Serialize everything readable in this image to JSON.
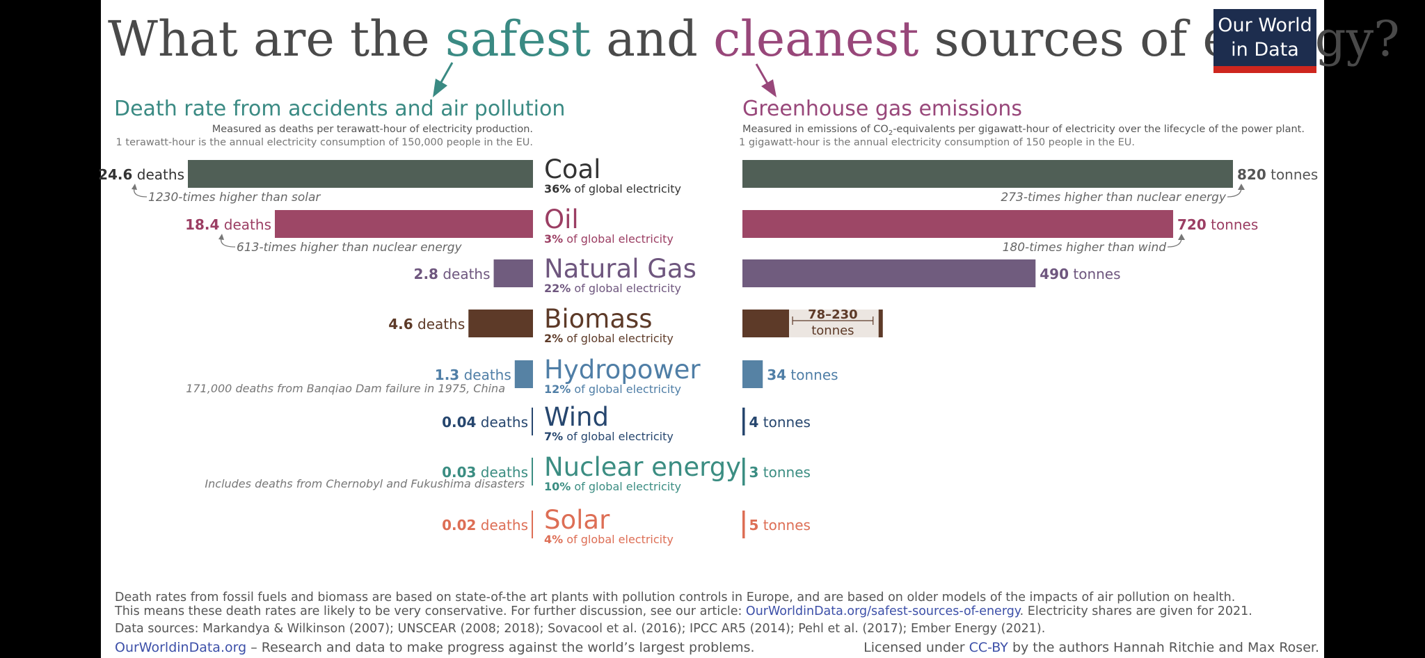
{
  "title": {
    "part1": "What are the ",
    "safest": "safest",
    "part2": " and ",
    "cleanest": "cleanest",
    "part3": " sources of energy?"
  },
  "logo": {
    "line1": "Our World",
    "line2": "in Data"
  },
  "left_panel": {
    "heading": "Death rate from accidents and air pollution",
    "sub1": "Measured as deaths per terawatt-hour of electricity production.",
    "sub2": "1 terawatt-hour is the annual electricity consumption of 150,000 people in the EU.",
    "unit": "deaths"
  },
  "right_panel": {
    "heading": "Greenhouse gas emissions",
    "sub1_a": "Measured in emissions of CO",
    "sub1_sub": "2",
    "sub1_b": "-equivalents per gigawatt-hour of electricity over the lifecycle of the power plant.",
    "sub2": "1 gigawatt-hour is the annual electricity consumption of 150 people in the EU.",
    "unit": "tonnes"
  },
  "share_suffix": "of global electricity",
  "colors": {
    "background": "#ffffff",
    "title_text": "#4a4a4a",
    "safest": "#3a8a83",
    "cleanest": "#98477a",
    "logo_bg": "#1d2d4e",
    "logo_bar": "#ce261e",
    "link": "#3c4fa8",
    "footer_text": "#555555"
  },
  "chart_data": [
    {
      "type": "bar",
      "orientation": "horizontal",
      "direction": "right-to-left",
      "title": "Death rate from accidents and air pollution",
      "unit": "deaths per TWh",
      "categories": [
        "Coal",
        "Oil",
        "Natural Gas",
        "Biomass",
        "Hydropower",
        "Wind",
        "Nuclear energy",
        "Solar"
      ],
      "values": [
        24.6,
        18.4,
        2.8,
        4.6,
        1.3,
        0.04,
        0.03,
        0.02
      ],
      "value_labels": [
        "24.6",
        "18.4",
        "2.8",
        "4.6",
        "1.3",
        "0.04",
        "0.03",
        "0.02"
      ]
    },
    {
      "type": "bar",
      "orientation": "horizontal",
      "direction": "left-to-right",
      "title": "Greenhouse gas emissions",
      "unit": "tonnes CO2-eq per GWh",
      "categories": [
        "Coal",
        "Oil",
        "Natural Gas",
        "Biomass",
        "Hydropower",
        "Wind",
        "Nuclear energy",
        "Solar"
      ],
      "values": [
        820,
        720,
        490,
        78,
        34,
        4,
        3,
        5
      ],
      "range_max": [
        null,
        null,
        null,
        230,
        null,
        null,
        null,
        null
      ],
      "value_labels": [
        "820",
        "720",
        "490",
        "78–230",
        "34",
        "4",
        "3",
        "5"
      ]
    }
  ],
  "sources": [
    {
      "name": "Coal",
      "share": "36%",
      "color": "#505f56",
      "label_color": "#333333",
      "left_value_color": "#333333",
      "right_value_color": "#555555",
      "left_note": "1230-times higher than solar",
      "right_note": "273-times higher than nuclear energy"
    },
    {
      "name": "Oil",
      "share": "3%",
      "color": "#9d4766",
      "label_color": "#9b3e63",
      "left_value_color": "#9b3e63",
      "right_value_color": "#9b3e63",
      "left_note": "613-times higher than nuclear energy",
      "right_note": "180-times higher than wind"
    },
    {
      "name": "Natural Gas",
      "share": "22%",
      "color": "#705c7e",
      "label_color": "#6e567e",
      "left_value_color": "#6e567e",
      "right_value_color": "#6e567e",
      "left_note": "",
      "right_note": ""
    },
    {
      "name": "Biomass",
      "share": "2%",
      "color": "#5d3a28",
      "label_color": "#5d3a28",
      "left_value_color": "#5d3a28",
      "right_value_color": "#5d3a28",
      "left_note": "",
      "right_note": ""
    },
    {
      "name": "Hydropower",
      "share": "12%",
      "color": "#5682a4",
      "label_color": "#4f7ea6",
      "left_value_color": "#4f7ea6",
      "right_value_color": "#4f7ea6",
      "left_note": "171,000 deaths from Banqiao Dam failure in 1975, China",
      "right_note": ""
    },
    {
      "name": "Wind",
      "share": "7%",
      "color": "#26466e",
      "label_color": "#26466e",
      "left_value_color": "#26466e",
      "right_value_color": "#26466e",
      "left_note": "",
      "right_note": ""
    },
    {
      "name": "Nuclear energy",
      "share": "10%",
      "color": "#3b8d82",
      "label_color": "#3b8d82",
      "left_value_color": "#3b8d82",
      "right_value_color": "#3b8d82",
      "left_note": "Includes deaths from Chernobyl and Fukushima disasters",
      "right_note": ""
    },
    {
      "name": "Solar",
      "share": "4%",
      "color": "#dd6e55",
      "label_color": "#dd6e55",
      "left_value_color": "#dd6e55",
      "right_value_color": "#dd6e55",
      "left_note": "",
      "right_note": ""
    }
  ],
  "footer": {
    "line1": "Death rates from fossil fuels and biomass are based on state-of-the art plants with pollution controls in Europe, and are based on older models of the impacts of air pollution on health.",
    "line2_a": "This means these death rates are likely to be very conservative. For further discussion, see our article: ",
    "line2_link": "OurWorldinData.org/safest-sources-of-energy",
    "line2_b": ". Electricity shares are given for 2021.",
    "line3": "Data sources: Markandya & Wilkinson (2007); UNSCEAR (2008; 2018); Sovacool et al. (2016); IPCC AR5 (2014); Pehl et al. (2017); Ember Energy (2021).",
    "line4_link": "OurWorldinData.org",
    "line4_text": " – Research and data to make progress against the world’s largest problems.",
    "license_a": "Licensed under ",
    "license_link": "CC-BY",
    "license_b": " by the authors Hannah Ritchie and Max Roser."
  }
}
